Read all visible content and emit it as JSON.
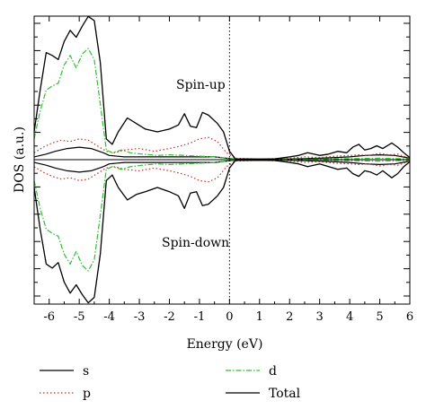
{
  "chart_data": {
    "type": "line",
    "title": "",
    "xlabel": "Energy (eV)",
    "ylabel": "DOS (a.u.)",
    "xlim": [
      -6.5,
      6
    ],
    "xticks": [
      "-6",
      "-5",
      "-4",
      "-3",
      "-2",
      "-1",
      "0",
      "1",
      "2",
      "3",
      "4",
      "5",
      "6"
    ],
    "fermi_level": 0,
    "annotations": {
      "spin_up": "Spin-up",
      "spin_down": "Spin-down"
    },
    "legend_position": "bottom",
    "series": [
      {
        "name": "s",
        "color": "#000000",
        "dash": "solid",
        "up": [
          [
            -6.5,
            0.2
          ],
          [
            -6.1,
            0.4
          ],
          [
            -5.8,
            0.6
          ],
          [
            -5.4,
            0.8
          ],
          [
            -5.0,
            0.9
          ],
          [
            -4.6,
            0.8
          ],
          [
            -4.2,
            0.5
          ],
          [
            -4.0,
            0.3
          ],
          [
            -3.5,
            0.2
          ],
          [
            -2.5,
            0.2
          ],
          [
            -1.5,
            0.2
          ],
          [
            -0.5,
            0.2
          ],
          [
            -0.1,
            0.1
          ],
          [
            0.2,
            0.05
          ],
          [
            2.0,
            0.05
          ],
          [
            3.0,
            0.1
          ],
          [
            4.0,
            0.2
          ],
          [
            4.5,
            0.3
          ],
          [
            5.0,
            0.35
          ],
          [
            5.5,
            0.3
          ],
          [
            6.0,
            0.1
          ]
        ],
        "down": [
          [
            -6.5,
            -0.2
          ],
          [
            -6.1,
            -0.4
          ],
          [
            -5.8,
            -0.6
          ],
          [
            -5.4,
            -0.8
          ],
          [
            -5.0,
            -0.9
          ],
          [
            -4.6,
            -0.8
          ],
          [
            -4.2,
            -0.5
          ],
          [
            -4.0,
            -0.3
          ],
          [
            -3.5,
            -0.2
          ],
          [
            -2.5,
            -0.2
          ],
          [
            -1.5,
            -0.2
          ],
          [
            -0.5,
            -0.2
          ],
          [
            -0.1,
            -0.1
          ],
          [
            0.2,
            -0.05
          ],
          [
            2.0,
            -0.05
          ],
          [
            3.0,
            -0.1
          ],
          [
            4.0,
            -0.2
          ],
          [
            4.5,
            -0.3
          ],
          [
            5.0,
            -0.35
          ],
          [
            5.5,
            -0.3
          ],
          [
            6.0,
            -0.1
          ]
        ]
      },
      {
        "name": "p",
        "color": "#c0302c",
        "dash": "dot",
        "up": [
          [
            -6.5,
            0.5
          ],
          [
            -6.2,
            0.9
          ],
          [
            -5.9,
            1.2
          ],
          [
            -5.6,
            1.4
          ],
          [
            -5.3,
            1.3
          ],
          [
            -5.0,
            1.5
          ],
          [
            -4.7,
            1.4
          ],
          [
            -4.4,
            1.0
          ],
          [
            -4.1,
            0.6
          ],
          [
            -3.8,
            0.5
          ],
          [
            -3.5,
            0.7
          ],
          [
            -3.0,
            0.8
          ],
          [
            -2.5,
            0.6
          ],
          [
            -2.0,
            0.8
          ],
          [
            -1.6,
            1.0
          ],
          [
            -1.3,
            1.2
          ],
          [
            -1.0,
            1.5
          ],
          [
            -0.7,
            1.6
          ],
          [
            -0.4,
            1.3
          ],
          [
            -0.1,
            0.5
          ],
          [
            0.2,
            0.1
          ],
          [
            1.0,
            0.05
          ],
          [
            2.0,
            0.1
          ],
          [
            2.5,
            0.2
          ],
          [
            3.0,
            0.15
          ],
          [
            3.5,
            0.25
          ],
          [
            4.0,
            0.3
          ],
          [
            4.3,
            0.35
          ],
          [
            4.6,
            0.3
          ],
          [
            5.0,
            0.45
          ],
          [
            5.3,
            0.35
          ],
          [
            5.6,
            0.4
          ],
          [
            6.0,
            0.1
          ]
        ],
        "down": [
          [
            -6.5,
            -0.5
          ],
          [
            -6.2,
            -0.9
          ],
          [
            -5.9,
            -1.2
          ],
          [
            -5.6,
            -1.4
          ],
          [
            -5.3,
            -1.3
          ],
          [
            -5.0,
            -1.5
          ],
          [
            -4.7,
            -1.4
          ],
          [
            -4.4,
            -1.0
          ],
          [
            -4.1,
            -0.6
          ],
          [
            -3.8,
            -0.5
          ],
          [
            -3.5,
            -0.7
          ],
          [
            -3.0,
            -0.8
          ],
          [
            -2.5,
            -0.6
          ],
          [
            -2.0,
            -0.8
          ],
          [
            -1.6,
            -1.0
          ],
          [
            -1.3,
            -1.2
          ],
          [
            -1.0,
            -1.5
          ],
          [
            -0.7,
            -1.6
          ],
          [
            -0.4,
            -1.3
          ],
          [
            -0.1,
            -0.5
          ],
          [
            0.2,
            -0.1
          ],
          [
            1.0,
            -0.05
          ],
          [
            2.0,
            -0.1
          ],
          [
            2.5,
            -0.2
          ],
          [
            3.0,
            -0.15
          ],
          [
            3.5,
            -0.25
          ],
          [
            4.0,
            -0.3
          ],
          [
            4.3,
            -0.35
          ],
          [
            4.6,
            -0.3
          ],
          [
            5.0,
            -0.45
          ],
          [
            5.3,
            -0.35
          ],
          [
            5.6,
            -0.4
          ],
          [
            6.0,
            -0.1
          ]
        ]
      },
      {
        "name": "d",
        "color": "#2fbf2f",
        "dash": "dashdot",
        "up": [
          [
            -6.5,
            1.5
          ],
          [
            -6.3,
            3.5
          ],
          [
            -6.1,
            5.0
          ],
          [
            -5.9,
            5.3
          ],
          [
            -5.7,
            5.5
          ],
          [
            -5.5,
            6.8
          ],
          [
            -5.3,
            7.5
          ],
          [
            -5.1,
            6.6
          ],
          [
            -4.9,
            7.6
          ],
          [
            -4.7,
            8.0
          ],
          [
            -4.5,
            7.2
          ],
          [
            -4.3,
            4.0
          ],
          [
            -4.1,
            0.7
          ],
          [
            -3.9,
            0.5
          ],
          [
            -3.6,
            0.7
          ],
          [
            -3.3,
            0.5
          ],
          [
            -2.9,
            0.4
          ],
          [
            -2.4,
            0.3
          ],
          [
            -2.0,
            0.35
          ],
          [
            -1.5,
            0.3
          ],
          [
            -1.0,
            0.25
          ],
          [
            -0.5,
            0.2
          ],
          [
            -0.1,
            0.1
          ],
          [
            0.2,
            0.03
          ],
          [
            2.0,
            0.03
          ],
          [
            3.0,
            0.05
          ],
          [
            4.0,
            0.07
          ],
          [
            5.0,
            0.1
          ],
          [
            6.0,
            0.05
          ]
        ],
        "down": [
          [
            -6.5,
            -1.5
          ],
          [
            -6.3,
            -3.5
          ],
          [
            -6.1,
            -5.0
          ],
          [
            -5.9,
            -5.3
          ],
          [
            -5.7,
            -5.5
          ],
          [
            -5.5,
            -6.8
          ],
          [
            -5.3,
            -7.5
          ],
          [
            -5.1,
            -6.6
          ],
          [
            -4.9,
            -7.6
          ],
          [
            -4.7,
            -8.0
          ],
          [
            -4.5,
            -7.2
          ],
          [
            -4.3,
            -4.0
          ],
          [
            -4.1,
            -0.7
          ],
          [
            -3.9,
            -0.5
          ],
          [
            -3.6,
            -0.7
          ],
          [
            -3.3,
            -0.5
          ],
          [
            -2.9,
            -0.4
          ],
          [
            -2.4,
            -0.3
          ],
          [
            -2.0,
            -0.35
          ],
          [
            -1.5,
            -0.3
          ],
          [
            -1.0,
            -0.25
          ],
          [
            -0.5,
            -0.2
          ],
          [
            -0.1,
            -0.1
          ],
          [
            0.2,
            -0.03
          ],
          [
            2.0,
            -0.03
          ],
          [
            3.0,
            -0.05
          ],
          [
            4.0,
            -0.07
          ],
          [
            5.0,
            -0.1
          ],
          [
            6.0,
            -0.05
          ]
        ]
      },
      {
        "name": "Total",
        "color": "#000000",
        "dash": "solid",
        "up": [
          [
            -6.5,
            2.0
          ],
          [
            -6.3,
            5.0
          ],
          [
            -6.1,
            7.7
          ],
          [
            -5.9,
            7.5
          ],
          [
            -5.7,
            7.2
          ],
          [
            -5.5,
            8.5
          ],
          [
            -5.3,
            9.3
          ],
          [
            -5.1,
            8.8
          ],
          [
            -4.9,
            9.6
          ],
          [
            -4.7,
            10.3
          ],
          [
            -4.5,
            10.0
          ],
          [
            -4.3,
            7.0
          ],
          [
            -4.1,
            1.5
          ],
          [
            -3.9,
            1.1
          ],
          [
            -3.7,
            2.0
          ],
          [
            -3.4,
            3.0
          ],
          [
            -3.1,
            2.6
          ],
          [
            -2.8,
            2.2
          ],
          [
            -2.4,
            2.0
          ],
          [
            -2.0,
            2.2
          ],
          [
            -1.7,
            2.5
          ],
          [
            -1.5,
            3.3
          ],
          [
            -1.3,
            2.4
          ],
          [
            -1.1,
            2.3
          ],
          [
            -0.9,
            3.4
          ],
          [
            -0.7,
            3.2
          ],
          [
            -0.4,
            2.6
          ],
          [
            -0.2,
            2.0
          ],
          [
            0.0,
            0.6
          ],
          [
            0.2,
            0.05
          ],
          [
            1.0,
            0.03
          ],
          [
            1.5,
            0.05
          ],
          [
            2.0,
            0.2
          ],
          [
            2.3,
            0.3
          ],
          [
            2.6,
            0.5
          ],
          [
            3.0,
            0.3
          ],
          [
            3.3,
            0.4
          ],
          [
            3.6,
            0.6
          ],
          [
            3.9,
            0.5
          ],
          [
            4.1,
            0.9
          ],
          [
            4.3,
            1.1
          ],
          [
            4.5,
            0.7
          ],
          [
            4.7,
            0.8
          ],
          [
            4.9,
            1.0
          ],
          [
            5.1,
            0.8
          ],
          [
            5.4,
            1.2
          ],
          [
            5.6,
            0.9
          ],
          [
            5.8,
            0.5
          ],
          [
            6.0,
            0.15
          ]
        ],
        "down": [
          [
            -6.5,
            -2.0
          ],
          [
            -6.3,
            -5.0
          ],
          [
            -6.1,
            -7.5
          ],
          [
            -5.9,
            -7.8
          ],
          [
            -5.7,
            -7.4
          ],
          [
            -5.5,
            -8.8
          ],
          [
            -5.3,
            -9.6
          ],
          [
            -5.1,
            -9.0
          ],
          [
            -4.9,
            -9.7
          ],
          [
            -4.7,
            -10.3
          ],
          [
            -4.5,
            -9.9
          ],
          [
            -4.3,
            -6.8
          ],
          [
            -4.1,
            -1.5
          ],
          [
            -3.9,
            -1.1
          ],
          [
            -3.7,
            -2.0
          ],
          [
            -3.4,
            -2.9
          ],
          [
            -3.1,
            -2.5
          ],
          [
            -2.8,
            -2.3
          ],
          [
            -2.4,
            -2.0
          ],
          [
            -2.0,
            -2.3
          ],
          [
            -1.7,
            -2.6
          ],
          [
            -1.5,
            -3.5
          ],
          [
            -1.3,
            -2.4
          ],
          [
            -1.1,
            -2.3
          ],
          [
            -0.9,
            -3.3
          ],
          [
            -0.7,
            -3.2
          ],
          [
            -0.4,
            -2.6
          ],
          [
            -0.2,
            -2.0
          ],
          [
            0.0,
            -0.6
          ],
          [
            0.2,
            -0.05
          ],
          [
            1.0,
            -0.03
          ],
          [
            1.5,
            -0.05
          ],
          [
            2.0,
            -0.2
          ],
          [
            2.3,
            -0.3
          ],
          [
            2.6,
            -0.5
          ],
          [
            3.0,
            -0.3
          ],
          [
            3.3,
            -0.5
          ],
          [
            3.6,
            -0.7
          ],
          [
            3.9,
            -0.6
          ],
          [
            4.1,
            -1.0
          ],
          [
            4.3,
            -1.2
          ],
          [
            4.5,
            -0.8
          ],
          [
            4.7,
            -0.9
          ],
          [
            4.9,
            -1.1
          ],
          [
            5.1,
            -0.8
          ],
          [
            5.4,
            -1.3
          ],
          [
            5.6,
            -1.0
          ],
          [
            5.8,
            -0.5
          ],
          [
            6.0,
            -0.15
          ]
        ]
      }
    ]
  }
}
